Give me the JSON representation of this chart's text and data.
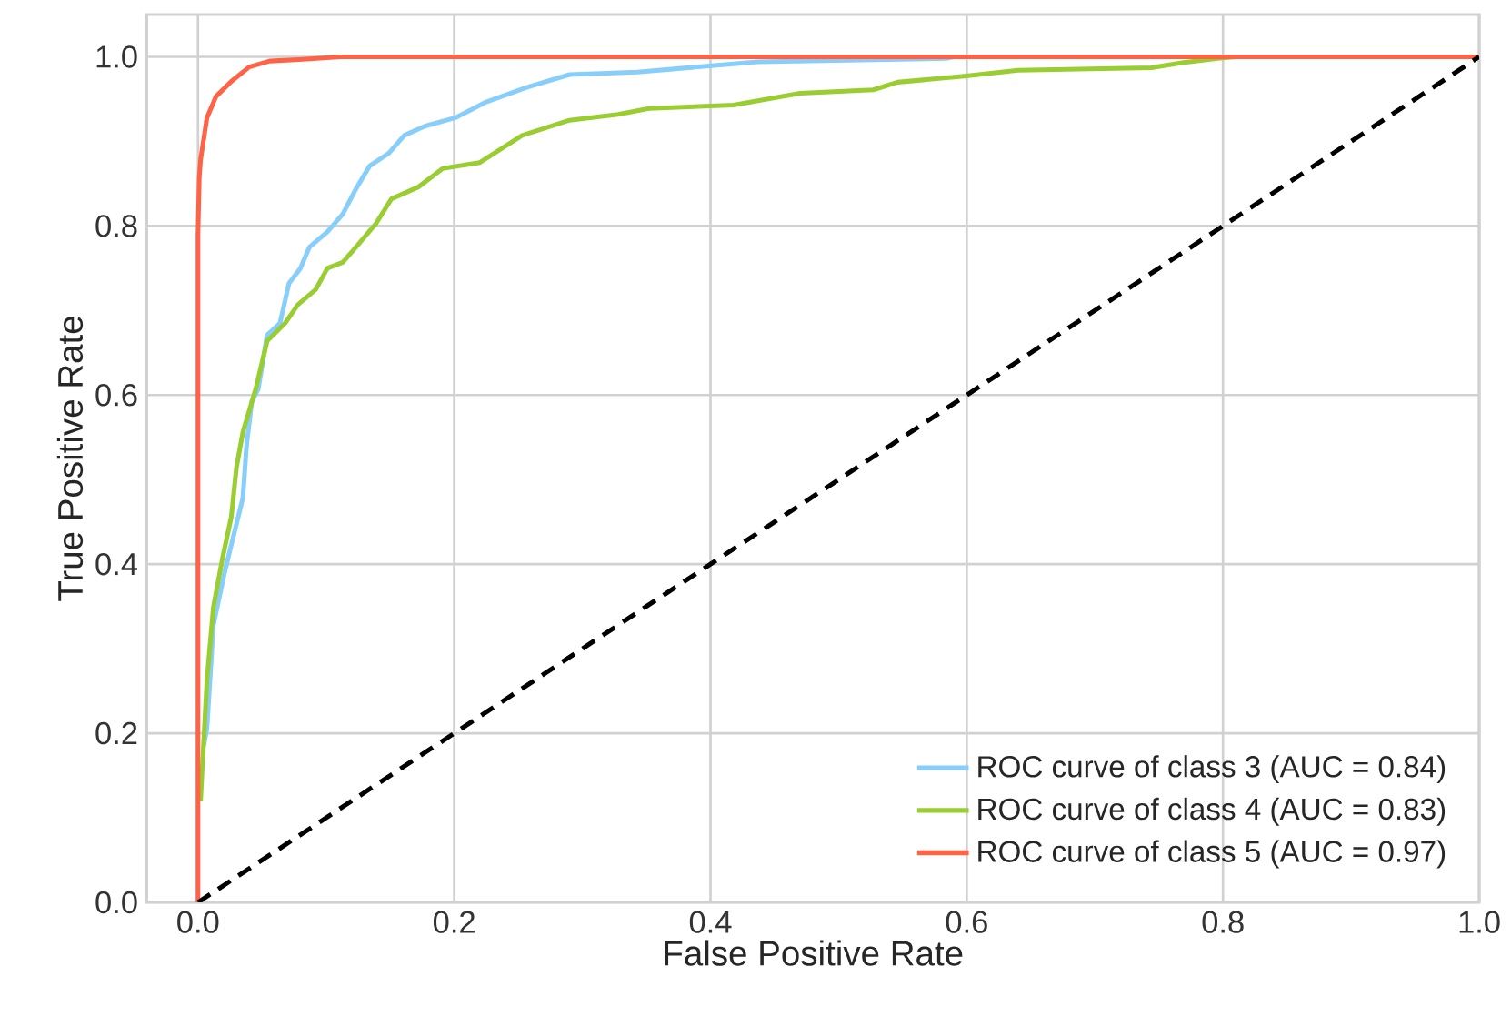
{
  "chart_data": {
    "type": "line",
    "xlabel": "False Positive Rate",
    "ylabel": "True Positive Rate",
    "xlim": [
      -0.04,
      1.0
    ],
    "ylim": [
      0.0,
      1.05
    ],
    "xticks": [
      {
        "value": 0.0,
        "label": "0.0"
      },
      {
        "value": 0.2,
        "label": "0.2"
      },
      {
        "value": 0.4,
        "label": "0.4"
      },
      {
        "value": 0.6,
        "label": "0.6"
      },
      {
        "value": 0.8,
        "label": "0.8"
      },
      {
        "value": 1.0,
        "label": "1.0"
      }
    ],
    "yticks": [
      {
        "value": 0.0,
        "label": "0.0"
      },
      {
        "value": 0.2,
        "label": "0.2"
      },
      {
        "value": 0.4,
        "label": "0.4"
      },
      {
        "value": 0.6,
        "label": "0.6"
      },
      {
        "value": 0.8,
        "label": "0.8"
      },
      {
        "value": 1.0,
        "label": "1.0"
      }
    ],
    "grid": true,
    "legend": "bottom right",
    "marker": "none",
    "series": [
      {
        "name": "ROC curve of class 3 (AUC = 0.84)",
        "color": "#87cefa",
        "x": [
          0.0045,
          0.007,
          0.012,
          0.021,
          0.028,
          0.035,
          0.038,
          0.042,
          0.047,
          0.054,
          0.064,
          0.071,
          0.08,
          0.087,
          0.101,
          0.113,
          0.123,
          0.134,
          0.149,
          0.161,
          0.177,
          0.201,
          0.224,
          0.257,
          0.29,
          0.343,
          0.437,
          0.584,
          0.59
        ],
        "values": [
          0.185,
          0.206,
          0.328,
          0.392,
          0.435,
          0.478,
          0.542,
          0.592,
          0.607,
          0.671,
          0.685,
          0.732,
          0.75,
          0.775,
          0.793,
          0.814,
          0.843,
          0.871,
          0.886,
          0.907,
          0.918,
          0.928,
          0.946,
          0.964,
          0.979,
          0.982,
          0.994,
          0.998,
          1.0
        ]
      },
      {
        "name": "ROC curve of class 4 (AUC = 0.83)",
        "color": "#9acd32",
        "x": [
          0.002,
          0.0045,
          0.007,
          0.012,
          0.019,
          0.026,
          0.03,
          0.035,
          0.045,
          0.054,
          0.068,
          0.078,
          0.092,
          0.101,
          0.113,
          0.125,
          0.139,
          0.151,
          0.172,
          0.191,
          0.22,
          0.253,
          0.29,
          0.328,
          0.352,
          0.418,
          0.47,
          0.527,
          0.546,
          0.598,
          0.64,
          0.744,
          0.768,
          0.796,
          0.81,
          1.0
        ],
        "values": [
          0.12,
          0.192,
          0.263,
          0.349,
          0.406,
          0.456,
          0.514,
          0.556,
          0.607,
          0.664,
          0.685,
          0.707,
          0.725,
          0.75,
          0.757,
          0.778,
          0.803,
          0.832,
          0.846,
          0.868,
          0.875,
          0.907,
          0.925,
          0.932,
          0.939,
          0.943,
          0.957,
          0.961,
          0.97,
          0.977,
          0.984,
          0.987,
          0.993,
          0.998,
          1.0,
          1.0
        ]
      },
      {
        "name": "ROC curve of class 5 (AUC = 0.97)",
        "color": "#ff6347",
        "x": [
          0.0,
          0.0,
          0.001,
          0.002,
          0.007,
          0.014,
          0.026,
          0.04,
          0.056,
          0.082,
          0.111,
          1.0
        ],
        "values": [
          0.0,
          0.79,
          0.857,
          0.878,
          0.928,
          0.953,
          0.971,
          0.988,
          0.995,
          0.997,
          1.0,
          1.0
        ]
      },
      {
        "color": "#000000",
        "line_style": "dashed",
        "x": [
          0.0,
          1.0
        ],
        "values": [
          0.0,
          1.0
        ]
      }
    ]
  }
}
